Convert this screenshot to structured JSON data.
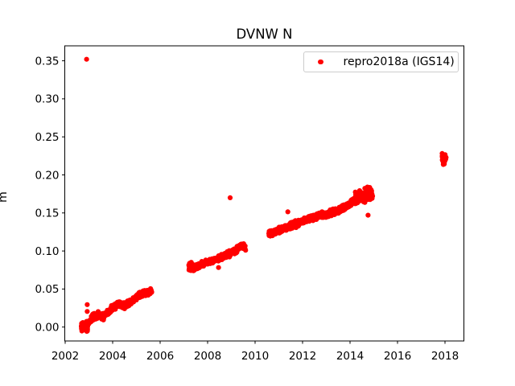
{
  "chart_data": {
    "type": "scatter",
    "title": "DVNW N",
    "ylabel": "m",
    "xlabel": "",
    "legend": [
      {
        "label": "repro2018a (IGS14)",
        "color": "#ff0000",
        "marker": "dot"
      }
    ],
    "legend_position": "upper right",
    "grid": false,
    "marker_color": "#ff0000",
    "xlim": [
      2001.98,
      2018.8
    ],
    "ylim": [
      -0.018,
      0.37
    ],
    "xticks": [
      2002,
      2004,
      2006,
      2008,
      2010,
      2012,
      2014,
      2016,
      2018
    ],
    "xtick_labels": [
      "2002",
      "2004",
      "2006",
      "2008",
      "2010",
      "2012",
      "2014",
      "2016",
      "2018"
    ],
    "yticks": [
      0.0,
      0.05,
      0.1,
      0.15,
      0.2,
      0.25,
      0.3,
      0.35
    ],
    "ytick_labels": [
      "0.00",
      "0.05",
      "0.10",
      "0.15",
      "0.20",
      "0.25",
      "0.30",
      "0.35"
    ],
    "series": [
      {
        "name": "repro2018a (IGS14)",
        "segments": [
          {
            "n": 400,
            "spread": 0.0035,
            "trend": [
              [
                2002.68,
                -0.001
              ],
              [
                2002.95,
                0.004
              ],
              [
                2003.15,
                0.013
              ],
              [
                2003.4,
                0.016
              ],
              [
                2003.6,
                0.0135
              ],
              [
                2003.85,
                0.02
              ],
              [
                2004.05,
                0.027
              ],
              [
                2004.3,
                0.031
              ],
              [
                2004.5,
                0.028
              ],
              [
                2004.75,
                0.0325
              ],
              [
                2005.0,
                0.0385
              ],
              [
                2005.25,
                0.0435
              ],
              [
                2005.45,
                0.045
              ],
              [
                2005.65,
                0.047
              ]
            ]
          },
          {
            "n": 330,
            "spread": 0.0032,
            "trend": [
              [
                2007.22,
                0.0765
              ],
              [
                2007.5,
                0.079
              ],
              [
                2007.8,
                0.0835
              ],
              [
                2008.1,
                0.0865
              ],
              [
                2008.4,
                0.0895
              ],
              [
                2008.7,
                0.0935
              ],
              [
                2008.95,
                0.0965
              ],
              [
                2009.15,
                0.0995
              ],
              [
                2009.3,
                0.1045
              ],
              [
                2009.45,
                0.1065
              ],
              [
                2009.6,
                0.1045
              ]
            ]
          },
          {
            "n": 620,
            "spread": 0.0035,
            "trend": [
              [
                2010.58,
                0.1235
              ],
              [
                2010.9,
                0.1255
              ],
              [
                2011.2,
                0.1295
              ],
              [
                2011.5,
                0.1335
              ],
              [
                2011.8,
                0.136
              ],
              [
                2012.1,
                0.1395
              ],
              [
                2012.4,
                0.1435
              ],
              [
                2012.7,
                0.147
              ],
              [
                2013.0,
                0.1475
              ],
              [
                2013.3,
                0.1515
              ],
              [
                2013.6,
                0.1545
              ],
              [
                2013.9,
                0.159
              ],
              [
                2014.15,
                0.165
              ],
              [
                2014.4,
                0.169
              ],
              [
                2014.65,
                0.172
              ],
              [
                2014.92,
                0.175
              ]
            ]
          }
        ],
        "clusters": [
          {
            "x_range": [
              2002.68,
              2002.95
            ],
            "y_center": 0.0008,
            "y_spread": 0.0075,
            "n": 50
          },
          {
            "x_range": [
              2007.2,
              2007.42
            ],
            "y_center": 0.0785,
            "y_spread": 0.007,
            "n": 30
          },
          {
            "x_range": [
              2014.2,
              2014.95
            ],
            "y_center": 0.174,
            "y_spread": 0.011,
            "n": 60
          },
          {
            "x_range": [
              2017.88,
              2018.05
            ],
            "y_center": 0.2205,
            "y_spread": 0.008,
            "n": 30
          }
        ],
        "outliers": [
          [
            2002.9,
            0.352
          ],
          [
            2002.93,
            0.0295
          ],
          [
            2002.93,
            0.0205
          ],
          [
            2008.46,
            0.0782
          ],
          [
            2008.95,
            0.17
          ],
          [
            2011.38,
            0.1515
          ],
          [
            2012.98,
            0.1445
          ],
          [
            2014.76,
            0.147
          ]
        ]
      }
    ]
  }
}
